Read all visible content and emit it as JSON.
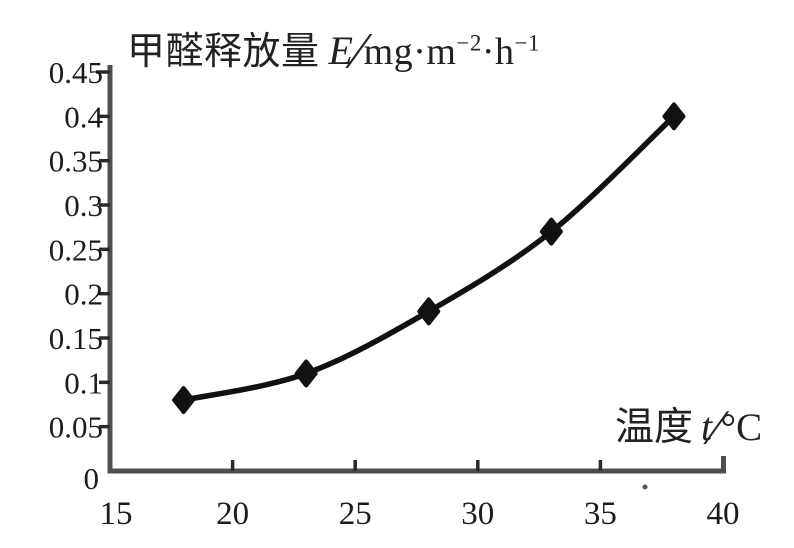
{
  "title": {
    "cjk": "甲醛释放量",
    "symbol": "E",
    "slash": "∕",
    "unit_base": "mg·m",
    "unit_exp1": "−2",
    "unit_mid": "·h",
    "unit_exp2": "−1"
  },
  "xaxis_label": {
    "cjk": "温度",
    "symbol": "t",
    "slash": "∕",
    "unit": "°C"
  },
  "chart_data": {
    "type": "line",
    "title": "甲醛释放量 E∕mg·m⁻²·h⁻¹",
    "xlabel": "温度 t∕°C",
    "ylabel": "甲醛释放量 E",
    "x": [
      18,
      23,
      28,
      33,
      38
    ],
    "y": [
      0.08,
      0.11,
      0.18,
      0.27,
      0.4
    ],
    "xlim": [
      15,
      40
    ],
    "ylim": [
      0,
      0.45
    ],
    "x_ticks": [
      15,
      20,
      25,
      30,
      35,
      40
    ],
    "x_tick_labels": [
      "15",
      "20",
      "25",
      "30",
      "35",
      "40"
    ],
    "y_ticks": [
      0,
      0.05,
      0.1,
      0.15,
      0.2,
      0.25,
      0.3,
      0.35,
      0.4,
      0.45
    ],
    "y_tick_labels": [
      "0",
      "0.05",
      "0.1",
      "0.15",
      "0.2",
      "0.25",
      "0.3",
      "0.35",
      "0.4",
      "0.45"
    ],
    "marker": "diamond",
    "grid": false,
    "legend": "none",
    "line_color": "#111111",
    "marker_color": "#111111",
    "axis_color": "#4f4f4f",
    "tick_color": "#2a2a2a",
    "text_color": "#1c1c1c"
  }
}
